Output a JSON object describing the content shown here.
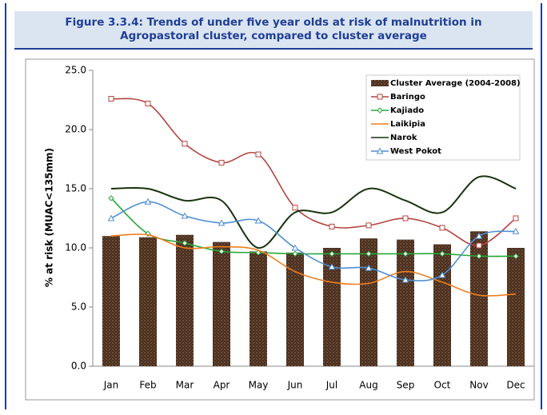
{
  "chart_data": {
    "type": "combo",
    "title": "Figure 3.3.4: Trends of under five year olds at risk of malnutrition in Agropastoral cluster, compared to cluster average",
    "y_label": "% at risk (MUAC<135mm)",
    "categories": [
      "Jan",
      "Feb",
      "Mar",
      "Apr",
      "May",
      "Jun",
      "Jul",
      "Aug",
      "Sep",
      "Oct",
      "Nov",
      "Dec"
    ],
    "ylim": [
      0,
      25
    ],
    "yticks": [
      {
        "value": 0,
        "label": "0.0"
      },
      {
        "value": 5,
        "label": "5.0"
      },
      {
        "value": 10,
        "label": "10.0"
      },
      {
        "value": 15,
        "label": "15.0"
      },
      {
        "value": 20,
        "label": "20.0"
      },
      {
        "value": 25,
        "label": "25.0"
      }
    ],
    "legend": "upper right",
    "series": [
      {
        "name": "Cluster Average (2004-2008)",
        "type": "bar",
        "color": "#4a2e1e",
        "values": [
          11.0,
          10.9,
          11.1,
          10.5,
          9.7,
          9.6,
          10.0,
          10.8,
          10.7,
          10.3,
          11.4,
          10.0
        ]
      },
      {
        "name": "Baringo",
        "type": "line",
        "marker": "square",
        "color": "#b5443f",
        "values": [
          22.6,
          22.2,
          18.8,
          17.2,
          17.9,
          13.4,
          11.8,
          11.9,
          12.5,
          11.7,
          10.2,
          12.5
        ]
      },
      {
        "name": "Kajiado",
        "type": "line",
        "marker": "diamond",
        "color": "#25a83a",
        "values": [
          14.2,
          11.2,
          10.4,
          9.7,
          9.6,
          9.5,
          9.5,
          9.5,
          9.5,
          9.5,
          9.3,
          9.3
        ]
      },
      {
        "name": "Laikipia",
        "type": "line",
        "marker": "none",
        "color": "#f07f1f",
        "values": [
          11.0,
          11.1,
          10.0,
          10.1,
          9.8,
          8.0,
          7.1,
          7.0,
          8.0,
          7.1,
          6.0,
          6.1
        ]
      },
      {
        "name": "Narok",
        "type": "line",
        "marker": "none",
        "color": "#17330e",
        "values": [
          15.0,
          15.0,
          14.0,
          14.0,
          10.0,
          13.0,
          13.0,
          15.0,
          14.0,
          13.0,
          16.0,
          15.0
        ]
      },
      {
        "name": "West Pokot",
        "type": "line",
        "marker": "triangle",
        "color": "#4f8fd4",
        "values": [
          12.5,
          13.9,
          12.7,
          12.1,
          12.3,
          10.0,
          8.4,
          8.3,
          7.3,
          7.7,
          11.0,
          11.4
        ]
      }
    ]
  }
}
